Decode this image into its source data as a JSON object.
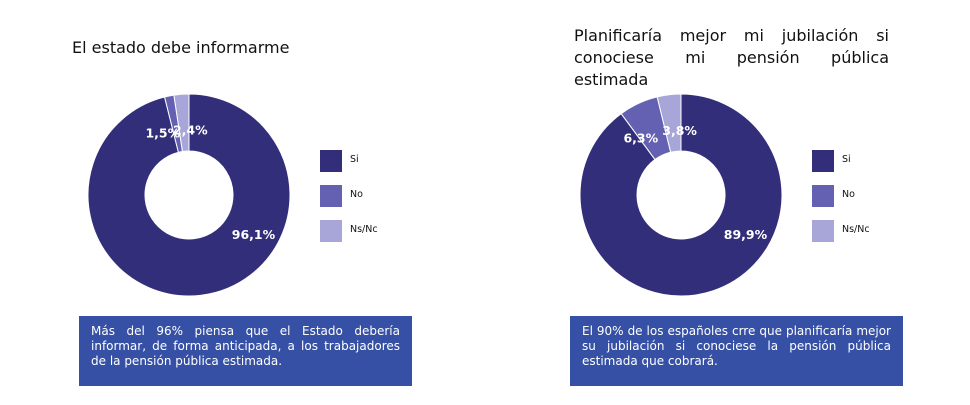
{
  "colors": {
    "si": "#332e7a",
    "no": "#6461b2",
    "nsnc": "#a8a5d8",
    "note_bg": "#3550a4"
  },
  "chart_data": [
    {
      "type": "pie",
      "title": "El estado debe informarme",
      "categories": [
        "Si",
        "No",
        "Ns/Nc"
      ],
      "values": [
        96.1,
        1.5,
        2.4
      ],
      "value_labels": [
        "96,1%",
        "1,5%",
        "2,4%"
      ],
      "legend_position": "right",
      "note": "Más del 96% piensa que el Estado debería informar, de forma anticipada, a los trabajadores de la pensión pública estimada."
    },
    {
      "type": "pie",
      "title": "Planificaría mejor mi jubilación si conociese mi pensión pública estimada",
      "title_lines": [
        "Planificaría mejor mi jubilación si",
        "conociese mi pensión pública estimada"
      ],
      "categories": [
        "Si",
        "No",
        "Ns/Nc"
      ],
      "values": [
        89.9,
        6.3,
        3.8
      ],
      "value_labels": [
        "89,9%",
        "6,3%",
        "3,8%"
      ],
      "legend_position": "right",
      "note": "El 90% de los españoles crre que planificaría mejor su jubilación si conociese la pensión pública estimada que cobrará."
    }
  ]
}
